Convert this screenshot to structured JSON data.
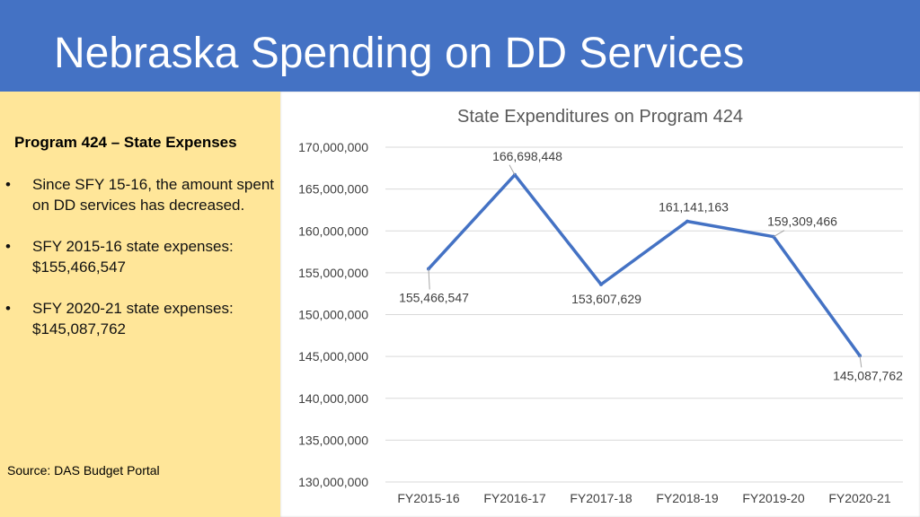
{
  "slide": {
    "title": "Nebraska Spending on DD Services"
  },
  "sidebar": {
    "heading": "Program 424 – State Expenses",
    "bullets": [
      "Since SFY 15-16, the amount spent on DD services has decreased.",
      "SFY 2015-16 state expenses: $155,466,547",
      "SFY 2020-21 state expenses: $145,087,762"
    ],
    "source": "Source: DAS Budget Portal"
  },
  "chart_data": {
    "type": "line",
    "title": "State Expenditures on Program 424",
    "xlabel": "",
    "ylabel": "",
    "categories": [
      "FY2015-16",
      "FY2016-17",
      "FY2017-18",
      "FY2018-19",
      "FY2019-20",
      "FY2020-21"
    ],
    "series": [
      {
        "values": [
          155466547,
          166698448,
          153607629,
          161141163,
          159309466,
          145087762
        ]
      }
    ],
    "data_labels": [
      "155,466,547",
      "166,698,448",
      "153,607,629",
      "161,141,163",
      "159,309,466",
      "145,087,762"
    ],
    "y_tick_labels": [
      "170,000,000",
      "165,000,000",
      "160,000,000",
      "155,000,000",
      "150,000,000",
      "145,000,000",
      "140,000,000",
      "135,000,000",
      "130,000,000"
    ],
    "ylim": [
      130000000,
      170000000
    ],
    "ytick_step": 5000000,
    "grid": true,
    "legend": "none",
    "line_color": "#4472c4",
    "grid_color": "#d9d9d9"
  }
}
